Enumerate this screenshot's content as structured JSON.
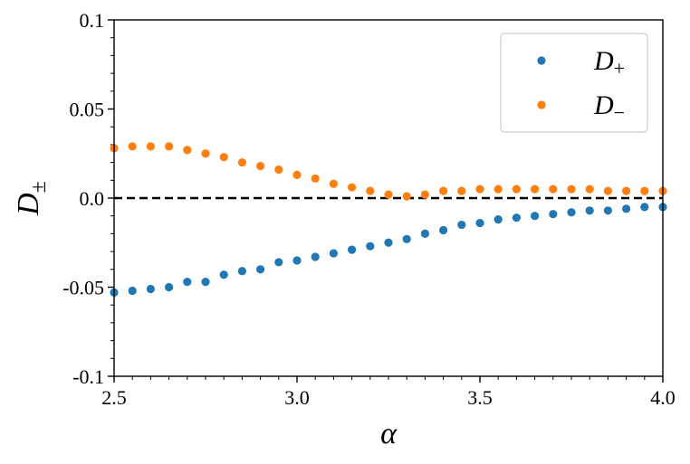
{
  "chart_data": {
    "type": "scatter",
    "xlabel": "α",
    "ylabel": "D±",
    "xlim": [
      2.5,
      4.0
    ],
    "ylim": [
      -0.1,
      0.1
    ],
    "xticks": [
      "2.5",
      "3.0",
      "3.5",
      "4.0"
    ],
    "yticks": [
      "0.1",
      "0.05",
      "0.0",
      "-0.05",
      "-0.1"
    ],
    "grid": false,
    "legend_position": "top-right",
    "reference_line": {
      "y": 0.0,
      "style": "dashed",
      "color": "#000000"
    },
    "series": [
      {
        "name": "D+",
        "label_main": "D",
        "label_sub": "+",
        "color": "#1f77b4",
        "x": [
          2.5,
          2.55,
          2.6,
          2.65,
          2.7,
          2.75,
          2.8,
          2.85,
          2.9,
          2.95,
          3.0,
          3.05,
          3.1,
          3.15,
          3.2,
          3.25,
          3.3,
          3.35,
          3.4,
          3.45,
          3.5,
          3.55,
          3.6,
          3.65,
          3.7,
          3.75,
          3.8,
          3.85,
          3.9,
          3.95,
          4.0
        ],
        "y": [
          -0.053,
          -0.052,
          -0.051,
          -0.05,
          -0.047,
          -0.047,
          -0.043,
          -0.041,
          -0.04,
          -0.036,
          -0.035,
          -0.033,
          -0.031,
          -0.029,
          -0.027,
          -0.025,
          -0.023,
          -0.02,
          -0.018,
          -0.015,
          -0.014,
          -0.012,
          -0.011,
          -0.01,
          -0.009,
          -0.008,
          -0.007,
          -0.007,
          -0.006,
          -0.005,
          -0.005
        ]
      },
      {
        "name": "D−",
        "label_main": "D",
        "label_sub": "−",
        "color": "#ff7f0e",
        "x": [
          2.5,
          2.55,
          2.6,
          2.65,
          2.7,
          2.75,
          2.8,
          2.85,
          2.9,
          2.95,
          3.0,
          3.05,
          3.1,
          3.15,
          3.2,
          3.25,
          3.3,
          3.35,
          3.4,
          3.45,
          3.5,
          3.55,
          3.6,
          3.65,
          3.7,
          3.75,
          3.8,
          3.85,
          3.9,
          3.95,
          4.0
        ],
        "y": [
          0.028,
          0.029,
          0.029,
          0.029,
          0.027,
          0.025,
          0.023,
          0.02,
          0.018,
          0.016,
          0.013,
          0.011,
          0.008,
          0.006,
          0.004,
          0.002,
          0.001,
          0.002,
          0.004,
          0.004,
          0.005,
          0.005,
          0.005,
          0.005,
          0.005,
          0.005,
          0.005,
          0.004,
          0.004,
          0.004,
          0.004
        ]
      }
    ]
  }
}
